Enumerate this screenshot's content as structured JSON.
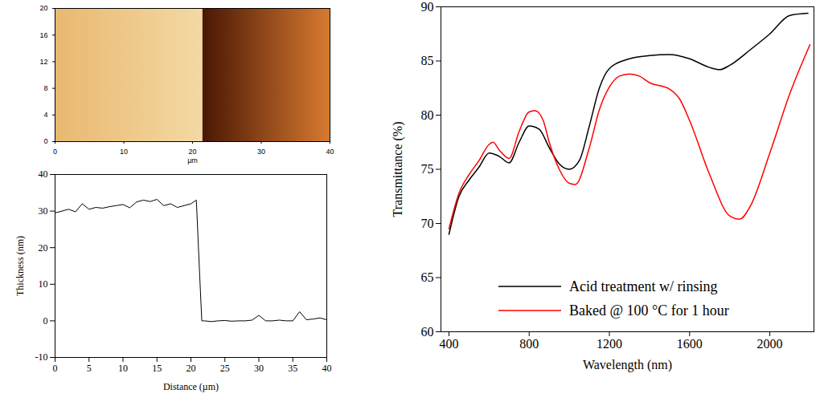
{
  "chart_data": [
    {
      "type": "image",
      "xlabel": "µm",
      "xlim": [
        0,
        40
      ],
      "ylim": [
        0,
        20
      ],
      "xticks": [
        0,
        10,
        20,
        30,
        40
      ],
      "yticks": [
        0,
        4,
        8,
        12,
        16,
        20
      ],
      "regions": [
        {
          "x": [
            0,
            21.5
          ],
          "colors": [
            "#e9b870",
            "#f3d9a4"
          ]
        },
        {
          "x": [
            21.5,
            40
          ],
          "colors": [
            "#4a1704",
            "#d77a30"
          ]
        }
      ]
    },
    {
      "type": "line",
      "xlabel": "Distance (µm)",
      "ylabel": "Thickness (nm)",
      "xlim": [
        0,
        40
      ],
      "ylim": [
        -10,
        40
      ],
      "xticks": [
        0,
        5,
        10,
        15,
        20,
        25,
        30,
        35,
        40
      ],
      "yticks": [
        -10,
        0,
        10,
        20,
        30,
        40
      ],
      "series": [
        {
          "color": "#000000",
          "x": [
            0,
            1,
            2,
            3,
            4,
            5,
            6,
            7,
            8,
            9,
            10,
            11,
            12,
            13,
            14,
            15,
            16,
            17,
            18,
            19,
            20,
            20.8,
            21.3,
            21.6,
            22,
            23,
            24,
            25,
            26,
            27,
            28,
            29,
            30,
            31,
            32,
            33,
            34,
            35,
            36,
            37,
            38,
            39,
            40
          ],
          "values": [
            29.5,
            30,
            30.5,
            29.8,
            32,
            30.5,
            31,
            30.8,
            31.2,
            31.5,
            31.8,
            30.9,
            32.5,
            33,
            32.6,
            33.2,
            31.5,
            32,
            31,
            31.5,
            32,
            33,
            12,
            0,
            0,
            -0.2,
            0,
            0.1,
            -0.1,
            0,
            0,
            0.2,
            1.5,
            0,
            0,
            0.2,
            0,
            0,
            2.5,
            0.3,
            0.5,
            0.8,
            0.3
          ]
        }
      ]
    },
    {
      "type": "line",
      "xlabel": "Wavelength (nm)",
      "ylabel": "Transmittance (%)",
      "xlim": [
        360,
        2220
      ],
      "ylim": [
        60,
        90
      ],
      "xticks": [
        400,
        800,
        1200,
        1600,
        2000
      ],
      "yticks": [
        60,
        65,
        70,
        75,
        80,
        85,
        90
      ],
      "legend": "bottom",
      "series": [
        {
          "name": "Acid treatment w/ rinsing",
          "color": "#000000",
          "x": [
            400,
            450,
            500,
            550,
            600,
            650,
            700,
            750,
            800,
            850,
            900,
            950,
            1000,
            1050,
            1100,
            1150,
            1200,
            1300,
            1400,
            1500,
            1600,
            1700,
            1750,
            1800,
            1900,
            2000,
            2100,
            2190
          ],
          "values": [
            69,
            72.5,
            74,
            75.2,
            76.5,
            76.2,
            75.6,
            77.5,
            79,
            78.7,
            77,
            75.5,
            75,
            75.8,
            79,
            82.5,
            84.3,
            85.2,
            85.5,
            85.6,
            85.2,
            84.4,
            84.2,
            84.6,
            86,
            87.5,
            89.2,
            89.4
          ]
        },
        {
          "name": "Baked @ 100 °C for 1 hour",
          "color": "#ff0000",
          "x": [
            400,
            450,
            500,
            550,
            600,
            620,
            650,
            700,
            750,
            800,
            830,
            870,
            900,
            950,
            1000,
            1030,
            1100,
            1150,
            1200,
            1250,
            1300,
            1350,
            1400,
            1500,
            1550,
            1600,
            1700,
            1800,
            1850,
            1900,
            2000,
            2100,
            2200
          ],
          "values": [
            69.5,
            72.8,
            74.5,
            75.8,
            77.3,
            77.5,
            76.8,
            76,
            78.5,
            80.3,
            80.4,
            79.5,
            77.5,
            75,
            73.7,
            73.6,
            77,
            80.5,
            82.6,
            83.6,
            83.8,
            83.6,
            83,
            82.4,
            81.5,
            79.5,
            74.5,
            70.7,
            70.4,
            71.5,
            76.5,
            82,
            86.5
          ]
        }
      ]
    }
  ]
}
